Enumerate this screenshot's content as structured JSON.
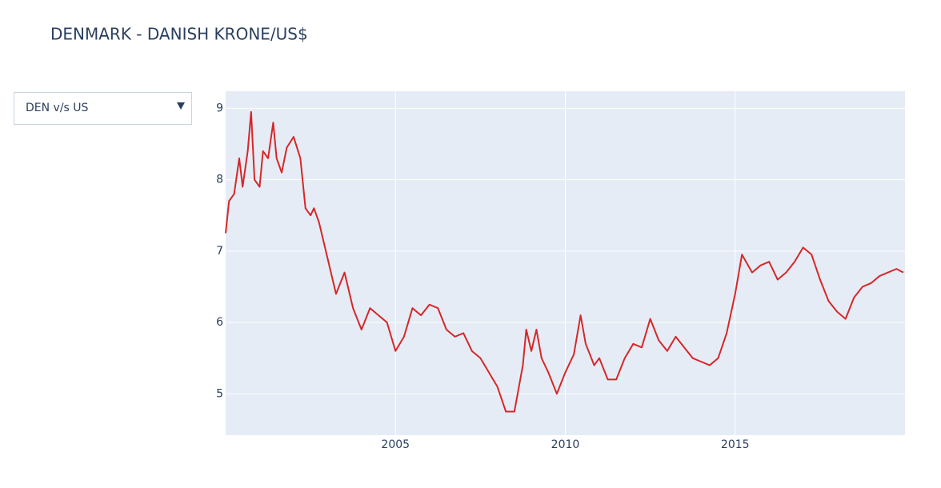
{
  "chart_data": {
    "type": "line",
    "title": "DENMARK - DANISH KRONE/US$",
    "x": [
      2000.0,
      2000.1,
      2000.25,
      2000.4,
      2000.5,
      2000.65,
      2000.75,
      2000.85,
      2001.0,
      2001.1,
      2001.25,
      2001.4,
      2001.5,
      2001.65,
      2001.8,
      2002.0,
      2002.2,
      2002.35,
      2002.5,
      2002.6,
      2002.75,
      2003.0,
      2003.25,
      2003.5,
      2003.75,
      2004.0,
      2004.25,
      2004.5,
      2004.75,
      2005.0,
      2005.25,
      2005.5,
      2005.75,
      2006.0,
      2006.25,
      2006.5,
      2006.75,
      2007.0,
      2007.25,
      2007.5,
      2007.75,
      2008.0,
      2008.25,
      2008.5,
      2008.75,
      2008.85,
      2009.0,
      2009.15,
      2009.3,
      2009.5,
      2009.75,
      2010.0,
      2010.25,
      2010.45,
      2010.6,
      2010.85,
      2011.0,
      2011.25,
      2011.5,
      2011.75,
      2012.0,
      2012.25,
      2012.5,
      2012.75,
      2013.0,
      2013.25,
      2013.5,
      2013.75,
      2014.0,
      2014.25,
      2014.5,
      2014.75,
      2015.0,
      2015.2,
      2015.5,
      2015.75,
      2016.0,
      2016.25,
      2016.5,
      2016.75,
      2017.0,
      2017.25,
      2017.5,
      2017.75,
      2018.0,
      2018.25,
      2018.5,
      2018.75,
      2019.0,
      2019.25,
      2019.5,
      2019.75,
      2019.95
    ],
    "values": [
      7.25,
      7.7,
      7.8,
      8.3,
      7.9,
      8.4,
      8.95,
      8.0,
      7.9,
      8.4,
      8.3,
      8.8,
      8.3,
      8.1,
      8.45,
      8.6,
      8.3,
      7.6,
      7.5,
      7.6,
      7.4,
      6.9,
      6.4,
      6.7,
      6.2,
      5.9,
      6.2,
      6.1,
      6.0,
      5.6,
      5.8,
      6.2,
      6.1,
      6.25,
      6.2,
      5.9,
      5.8,
      5.85,
      5.6,
      5.5,
      5.3,
      5.1,
      4.75,
      4.75,
      5.4,
      5.9,
      5.6,
      5.9,
      5.5,
      5.3,
      5.0,
      5.3,
      5.55,
      6.1,
      5.7,
      5.4,
      5.5,
      5.2,
      5.2,
      5.5,
      5.7,
      5.65,
      6.05,
      5.75,
      5.6,
      5.8,
      5.65,
      5.5,
      5.45,
      5.4,
      5.5,
      5.85,
      6.4,
      6.95,
      6.7,
      6.8,
      6.85,
      6.6,
      6.7,
      6.85,
      7.05,
      6.95,
      6.6,
      6.3,
      6.15,
      6.05,
      6.35,
      6.5,
      6.55,
      6.65,
      6.7,
      6.75,
      6.7
    ],
    "color": "#d62728",
    "xlim": [
      2000,
      2020
    ],
    "xticks": [
      2005,
      2010,
      2015
    ],
    "ylim": [
      4.42,
      9.24
    ],
    "yticks": [
      5,
      6,
      7,
      8,
      9
    ],
    "grid": true
  },
  "dropdown": {
    "selected": "DEN v/s US"
  }
}
